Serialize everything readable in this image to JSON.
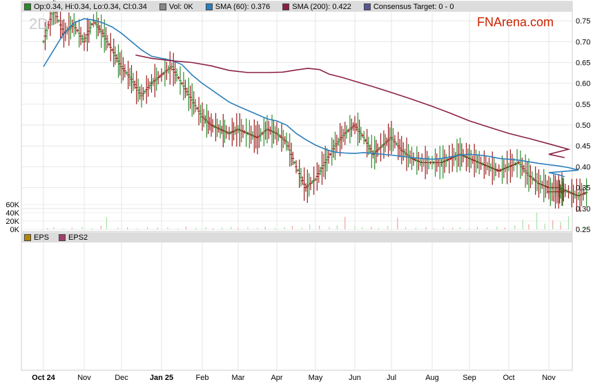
{
  "legend": {
    "ohlc": "Op:0.34, Hi:0.34, Lo:0.34, Cl:0.34",
    "vol": "Vol: 0K",
    "sma60": "SMA (60): 0.376",
    "sma200": "SMA (200): 0.422",
    "consensus": "Consensus Target: 0 - 0",
    "colors": {
      "ohlc": "#2a8a2a",
      "vol": "#888888",
      "sma60": "#2a7fbf",
      "sma200": "#8a2040",
      "consensus": "#555599"
    }
  },
  "brand": "FNArena.com",
  "period_label": "2D",
  "eps_legend": {
    "eps": "EPS",
    "eps2": "EPS2",
    "colors": {
      "eps": "#b38600",
      "eps2": "#a0406a"
    }
  },
  "chart_data": {
    "type": "line",
    "title": "",
    "x_ticks": [
      "Oct 24",
      "Nov",
      "Dec",
      "Jan 25",
      "Feb",
      "Mar",
      "Apr",
      "May",
      "Jun",
      "Jul",
      "Aug",
      "Sep",
      "Oct",
      "Nov"
    ],
    "bold_x_ticks": [
      "Oct 24",
      "Jan 25"
    ],
    "y_ticks": [
      "0.75",
      "0.70",
      "0.65",
      "0.60",
      "0.55",
      "0.50",
      "0.45",
      "0.40",
      "0.35",
      "0.30",
      "0.25"
    ],
    "ylim": [
      0.25,
      0.77
    ],
    "volume_ticks": [
      "60K",
      "40K",
      "20K",
      "0K"
    ],
    "volume_lim": [
      0,
      70
    ],
    "grid": true,
    "price_points": [
      [
        0.0,
        0.7
      ],
      [
        0.5,
        0.78
      ],
      [
        1.0,
        0.72
      ],
      [
        1.5,
        0.74
      ],
      [
        2.0,
        0.7
      ],
      [
        2.5,
        0.75
      ],
      [
        3.0,
        0.72
      ],
      [
        3.5,
        0.68
      ],
      [
        4.0,
        0.64
      ],
      [
        4.5,
        0.61
      ],
      [
        5.0,
        0.57
      ],
      [
        5.5,
        0.6
      ],
      [
        6.0,
        0.62
      ],
      [
        6.5,
        0.64
      ],
      [
        7.0,
        0.6
      ],
      [
        7.5,
        0.56
      ],
      [
        8.0,
        0.52
      ],
      [
        8.5,
        0.5
      ],
      [
        9.0,
        0.49
      ],
      [
        9.5,
        0.48
      ],
      [
        10.0,
        0.49
      ],
      [
        10.5,
        0.48
      ],
      [
        11.0,
        0.47
      ],
      [
        11.5,
        0.49
      ],
      [
        12.0,
        0.48
      ],
      [
        12.5,
        0.46
      ],
      [
        13.0,
        0.4
      ],
      [
        13.5,
        0.35
      ],
      [
        14.0,
        0.37
      ],
      [
        14.5,
        0.41
      ],
      [
        15.0,
        0.45
      ],
      [
        15.5,
        0.48
      ],
      [
        16.0,
        0.5
      ],
      [
        16.5,
        0.47
      ],
      [
        17.0,
        0.43
      ],
      [
        17.5,
        0.45
      ],
      [
        18.0,
        0.47
      ],
      [
        18.5,
        0.44
      ],
      [
        19.0,
        0.42
      ],
      [
        19.5,
        0.41
      ],
      [
        20.0,
        0.41
      ],
      [
        20.5,
        0.41
      ],
      [
        21.0,
        0.42
      ],
      [
        21.5,
        0.43
      ],
      [
        22.0,
        0.42
      ],
      [
        22.5,
        0.41
      ],
      [
        23.0,
        0.4
      ],
      [
        23.5,
        0.39
      ],
      [
        24.0,
        0.4
      ],
      [
        24.5,
        0.41
      ],
      [
        25.0,
        0.38
      ],
      [
        25.5,
        0.36
      ],
      [
        26.0,
        0.35
      ],
      [
        26.5,
        0.35
      ],
      [
        27.0,
        0.34
      ],
      [
        27.5,
        0.33
      ],
      [
        28.0,
        0.34
      ],
      [
        28.5,
        0.34
      ],
      [
        28.8,
        0.34
      ]
    ],
    "series": [
      {
        "name": "SMA (60)",
        "color": "#2a7fbf",
        "points": [
          [
            0,
            0.64
          ],
          [
            0.5,
            0.68
          ],
          [
            1,
            0.72
          ],
          [
            1.5,
            0.745
          ],
          [
            2,
            0.755
          ],
          [
            2.5,
            0.752
          ],
          [
            3,
            0.745
          ],
          [
            3.5,
            0.735
          ],
          [
            4,
            0.72
          ],
          [
            4.5,
            0.7
          ],
          [
            5,
            0.68
          ],
          [
            5.5,
            0.665
          ],
          [
            6,
            0.66
          ],
          [
            6.5,
            0.655
          ],
          [
            7,
            0.645
          ],
          [
            7.5,
            0.62
          ],
          [
            8,
            0.6
          ],
          [
            8.5,
            0.585
          ],
          [
            9,
            0.57
          ],
          [
            9.5,
            0.555
          ],
          [
            10,
            0.545
          ],
          [
            10.5,
            0.535
          ],
          [
            11,
            0.525
          ],
          [
            11.5,
            0.515
          ],
          [
            12,
            0.51
          ],
          [
            12.5,
            0.5
          ],
          [
            13,
            0.48
          ],
          [
            13.5,
            0.465
          ],
          [
            14,
            0.452
          ],
          [
            14.5,
            0.442
          ],
          [
            15,
            0.435
          ],
          [
            15.5,
            0.433
          ],
          [
            16,
            0.432
          ],
          [
            16.5,
            0.434
          ],
          [
            17,
            0.432
          ],
          [
            17.5,
            0.43
          ],
          [
            18,
            0.428
          ],
          [
            18.5,
            0.425
          ],
          [
            19,
            0.422
          ],
          [
            19.5,
            0.42
          ],
          [
            20,
            0.418
          ],
          [
            20.5,
            0.42
          ],
          [
            21,
            0.424
          ],
          [
            21.5,
            0.428
          ],
          [
            22,
            0.43
          ],
          [
            22.5,
            0.428
          ],
          [
            23,
            0.425
          ],
          [
            23.5,
            0.42
          ],
          [
            24,
            0.418
          ],
          [
            24.5,
            0.416
          ],
          [
            25,
            0.412
          ],
          [
            25.5,
            0.408
          ],
          [
            26,
            0.405
          ],
          [
            26.5,
            0.402
          ],
          [
            27,
            0.398
          ],
          [
            27.5,
            0.392
          ],
          [
            28,
            0.386
          ],
          [
            28.5,
            0.381
          ],
          [
            28.8,
            0.376
          ]
        ]
      },
      {
        "name": "SMA (200)",
        "color": "#8a2040",
        "points": [
          [
            4.7,
            0.668
          ],
          [
            5.5,
            0.66
          ],
          [
            6.5,
            0.654
          ],
          [
            7.5,
            0.65
          ],
          [
            8.5,
            0.642
          ],
          [
            9.5,
            0.631
          ],
          [
            10.5,
            0.626
          ],
          [
            11.5,
            0.626
          ],
          [
            12.3,
            0.627
          ],
          [
            13,
            0.632
          ],
          [
            13.6,
            0.636
          ],
          [
            14.2,
            0.633
          ],
          [
            14.7,
            0.622
          ],
          [
            15.3,
            0.615
          ],
          [
            16,
            0.605
          ],
          [
            17,
            0.592
          ],
          [
            18,
            0.578
          ],
          [
            19,
            0.562
          ],
          [
            20,
            0.545
          ],
          [
            21,
            0.528
          ],
          [
            22,
            0.51
          ],
          [
            23,
            0.495
          ],
          [
            24,
            0.48
          ],
          [
            25,
            0.468
          ],
          [
            26,
            0.455
          ],
          [
            27,
            0.442
          ],
          [
            28,
            0.43
          ],
          [
            28.8,
            0.422
          ]
        ]
      }
    ],
    "volume_bars": [
      [
        0.2,
        3
      ],
      [
        0.5,
        5
      ],
      [
        1.0,
        2
      ],
      [
        1.4,
        4
      ],
      [
        1.9,
        6
      ],
      [
        2.4,
        3
      ],
      [
        2.9,
        8
      ],
      [
        3.2,
        29
      ],
      [
        3.8,
        4
      ],
      [
        4.3,
        5
      ],
      [
        4.8,
        3
      ],
      [
        5.3,
        6
      ],
      [
        5.8,
        4
      ],
      [
        6.3,
        5
      ],
      [
        6.8,
        3
      ],
      [
        7.2,
        7
      ],
      [
        7.7,
        4
      ],
      [
        8.2,
        5
      ],
      [
        8.6,
        3
      ],
      [
        9.1,
        4
      ],
      [
        9.6,
        6
      ],
      [
        10.0,
        3
      ],
      [
        10.5,
        5
      ],
      [
        11.0,
        4
      ],
      [
        11.4,
        6
      ],
      [
        11.9,
        3
      ],
      [
        12.4,
        5
      ],
      [
        12.8,
        8
      ],
      [
        13.3,
        4
      ],
      [
        13.7,
        12
      ],
      [
        14.2,
        9
      ],
      [
        14.7,
        6
      ],
      [
        15.1,
        10
      ],
      [
        15.5,
        30
      ],
      [
        16.0,
        7
      ],
      [
        16.4,
        5
      ],
      [
        16.9,
        6
      ],
      [
        17.3,
        4
      ],
      [
        17.8,
        8
      ],
      [
        18.3,
        28
      ],
      [
        18.7,
        6
      ],
      [
        19.2,
        4
      ],
      [
        19.7,
        5
      ],
      [
        20.1,
        3
      ],
      [
        20.6,
        6
      ],
      [
        21.1,
        4
      ],
      [
        21.5,
        5
      ],
      [
        22.0,
        3
      ],
      [
        22.4,
        6
      ],
      [
        22.9,
        5
      ],
      [
        23.4,
        7
      ],
      [
        23.8,
        4
      ],
      [
        24.3,
        10
      ],
      [
        24.7,
        23
      ],
      [
        25.0,
        12
      ],
      [
        25.4,
        40
      ],
      [
        25.8,
        14
      ],
      [
        26.2,
        22
      ],
      [
        26.6,
        18
      ],
      [
        27.0,
        32
      ],
      [
        27.4,
        8
      ],
      [
        27.8,
        6
      ],
      [
        28.2,
        9
      ],
      [
        28.6,
        10
      ]
    ]
  }
}
